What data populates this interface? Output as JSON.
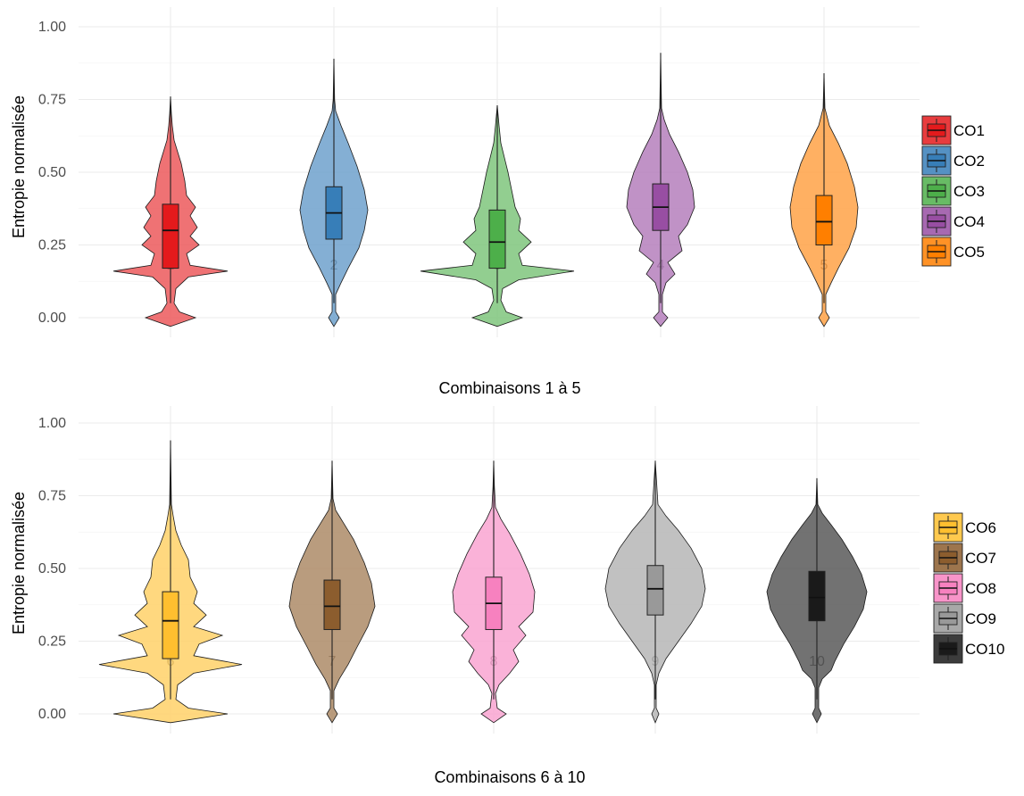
{
  "chart_data": [
    {
      "type": "violin",
      "xlabel": "Combinaisons 1 à 5",
      "ylabel": "Entropie normalisée",
      "ylim": [
        0,
        1
      ],
      "yticks": [
        0,
        0.25,
        0.5,
        0.75,
        1
      ],
      "ytick_labels": [
        "0.00",
        "0.25",
        "0.50",
        "0.75",
        "1.00"
      ],
      "categories": [
        "1",
        "2",
        "3",
        "4",
        "5"
      ],
      "grid": true,
      "legend_position": "right",
      "series": [
        {
          "name": "CO1",
          "color": "#E41A1C",
          "box": {
            "q1": 0.17,
            "median": 0.3,
            "q3": 0.39
          },
          "whisker": {
            "low": 0.0,
            "high": 0.76
          }
        },
        {
          "name": "CO2",
          "color": "#377EB8",
          "box": {
            "q1": 0.27,
            "median": 0.36,
            "q3": 0.45
          },
          "whisker": {
            "low": 0.0,
            "high": 0.89
          }
        },
        {
          "name": "CO3",
          "color": "#4DAF4A",
          "box": {
            "q1": 0.17,
            "median": 0.26,
            "q3": 0.37
          },
          "whisker": {
            "low": 0.0,
            "high": 0.73
          }
        },
        {
          "name": "CO4",
          "color": "#984EA3",
          "box": {
            "q1": 0.3,
            "median": 0.38,
            "q3": 0.46
          },
          "whisker": {
            "low": 0.0,
            "high": 0.91
          }
        },
        {
          "name": "CO5",
          "color": "#FF7F00",
          "box": {
            "q1": 0.25,
            "median": 0.33,
            "q3": 0.42
          },
          "whisker": {
            "low": 0.0,
            "high": 0.84
          }
        }
      ]
    },
    {
      "type": "violin",
      "xlabel": "Combinaisons 6 à 10",
      "ylabel": "Entropie normalisée",
      "ylim": [
        0,
        1
      ],
      "yticks": [
        0,
        0.25,
        0.5,
        0.75,
        1
      ],
      "ytick_labels": [
        "0.00",
        "0.25",
        "0.50",
        "0.75",
        "1.00"
      ],
      "categories": [
        "6",
        "7",
        "8",
        "9",
        "10"
      ],
      "grid": true,
      "legend_position": "right",
      "series": [
        {
          "name": "CO6",
          "color": "#FFBF2F",
          "box": {
            "q1": 0.19,
            "median": 0.32,
            "q3": 0.42
          },
          "whisker": {
            "low": 0.0,
            "high": 0.94
          }
        },
        {
          "name": "CO7",
          "color": "#8C5D2E",
          "box": {
            "q1": 0.29,
            "median": 0.37,
            "q3": 0.46
          },
          "whisker": {
            "low": 0.0,
            "high": 0.87
          }
        },
        {
          "name": "CO8",
          "color": "#F781BF",
          "box": {
            "q1": 0.29,
            "median": 0.38,
            "q3": 0.47
          },
          "whisker": {
            "low": 0.0,
            "high": 0.87
          }
        },
        {
          "name": "CO9",
          "color": "#999999",
          "box": {
            "q1": 0.34,
            "median": 0.43,
            "q3": 0.51
          },
          "whisker": {
            "low": 0.0,
            "high": 0.87
          }
        },
        {
          "name": "CO10",
          "color": "#1A1A1A",
          "box": {
            "q1": 0.32,
            "median": 0.4,
            "q3": 0.49
          },
          "whisker": {
            "low": 0.0,
            "high": 0.81
          }
        }
      ]
    }
  ]
}
